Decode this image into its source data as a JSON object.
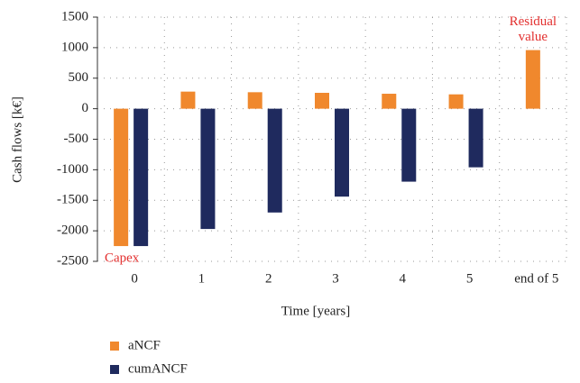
{
  "chart_data": {
    "type": "bar",
    "x_label": "Time [years]",
    "y_label": "Cash flows [k€]",
    "categories": [
      "0",
      "1",
      "2",
      "3",
      "4",
      "5",
      "end of 5"
    ],
    "series": [
      {
        "name": "aNCF",
        "color": "#f0882d",
        "values": [
          -2250,
          280,
          270,
          260,
          245,
          235,
          960
        ]
      },
      {
        "name": "cumANCF",
        "color": "#1f2a5e",
        "values": [
          -2250,
          -1970,
          -1700,
          -1440,
          -1195,
          -960,
          null
        ]
      }
    ],
    "ylim": [
      -2500,
      1500
    ],
    "yticks": [
      -2500,
      -2000,
      -1500,
      -1000,
      -500,
      0,
      500,
      1000,
      1500
    ],
    "grid": true,
    "annotations": [
      {
        "lines": [
          "Capex"
        ],
        "color": "#e3302f"
      },
      {
        "lines": [
          "Residual",
          "value"
        ],
        "color": "#e3302f"
      }
    ]
  }
}
